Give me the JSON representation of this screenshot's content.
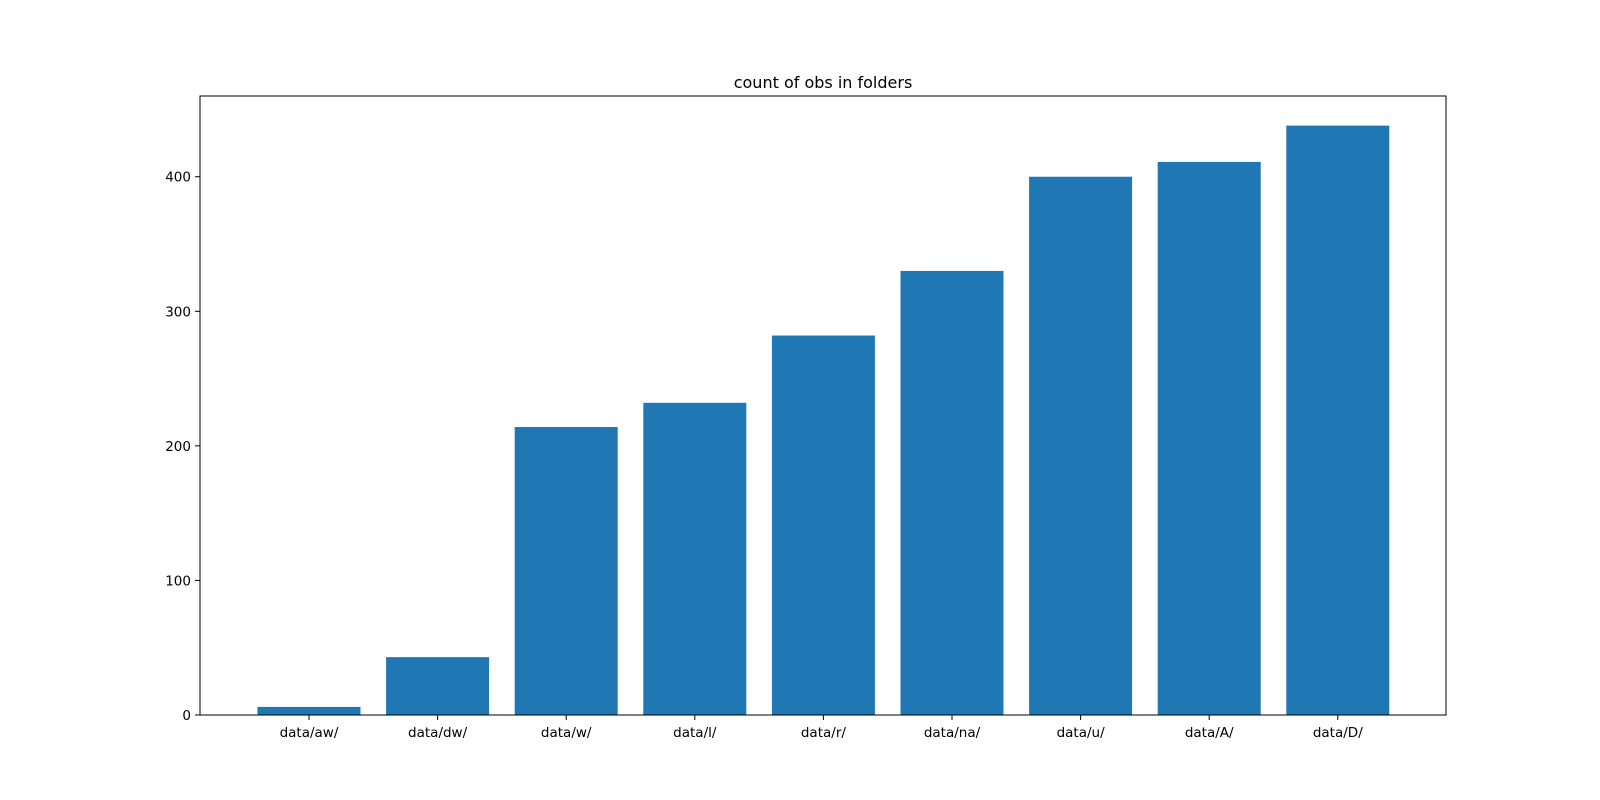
{
  "chart_data": {
    "type": "bar",
    "title": "count of obs in folders",
    "xlabel": "",
    "ylabel": "",
    "categories": [
      "data/aw/",
      "data/dw/",
      "data/w/",
      "data/l/",
      "data/r/",
      "data/na/",
      "data/u/",
      "data/A/",
      "data/D/"
    ],
    "values": [
      6,
      43,
      214,
      232,
      282,
      330,
      400,
      411,
      438
    ],
    "ylim": [
      0,
      460
    ],
    "yticks": [
      0,
      100,
      200,
      300,
      400
    ],
    "grid": false,
    "bar_color": "#1f77b4"
  }
}
